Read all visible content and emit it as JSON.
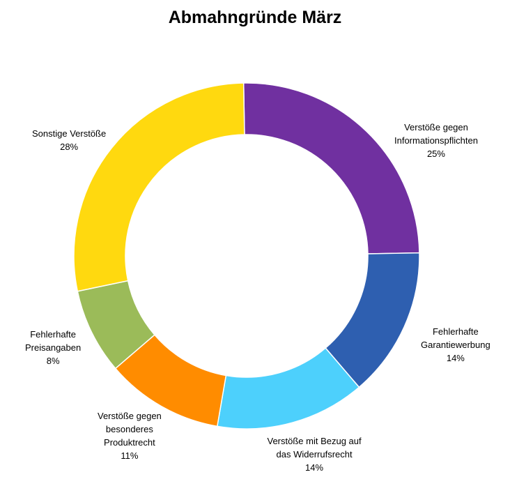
{
  "chart_data": {
    "type": "pie",
    "variant": "donut",
    "title": "Abmahngründe März",
    "slices": [
      {
        "name": "Verstöße gegen\nInformationspflichten",
        "value": 25,
        "label": "25%",
        "color": "#7030a0"
      },
      {
        "name": "Fehlerhafte\nGarantiewerbung",
        "value": 14,
        "label": "14%",
        "color": "#2e5fb0"
      },
      {
        "name": "Verstöße mit Bezug auf\ndas Widerrufsrecht",
        "value": 14,
        "label": "14%",
        "color": "#4dd0fc"
      },
      {
        "name": "Verstöße gegen\nbesonderes\nProduktrecht",
        "value": 11,
        "label": "11%",
        "color": "#ff8c00"
      },
      {
        "name": "Fehlerhafte\nPreisangaben",
        "value": 8,
        "label": "8%",
        "color": "#9bbb59"
      },
      {
        "name": "Sonstige Verstöße",
        "value": 28,
        "label": "28%",
        "color": "#ffd90f"
      }
    ],
    "legend": "none"
  }
}
